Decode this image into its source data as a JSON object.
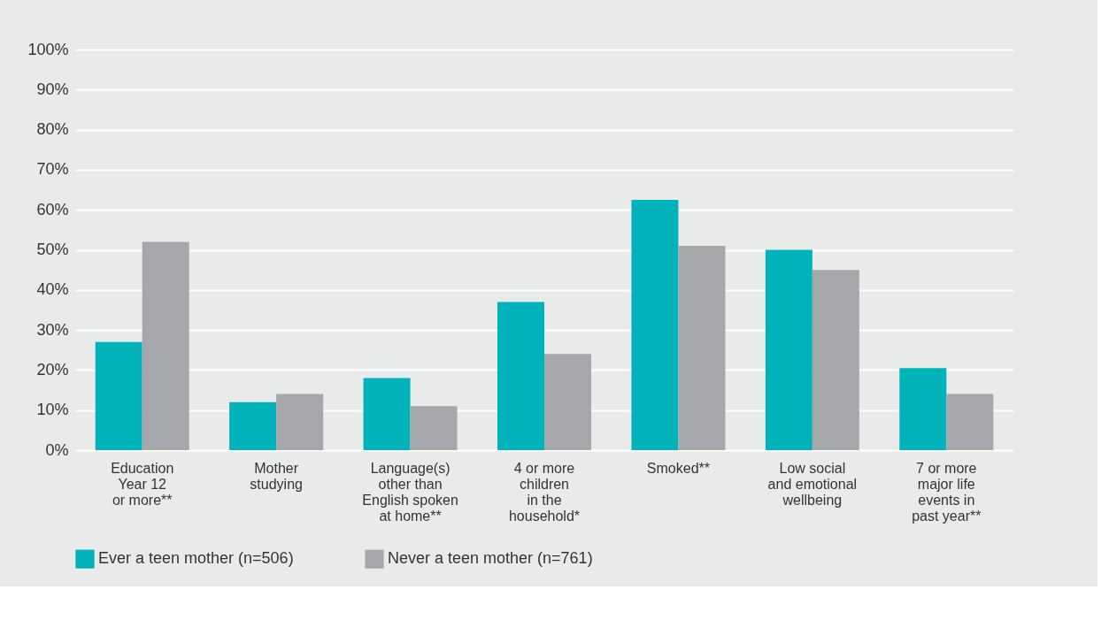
{
  "chart_data": {
    "type": "bar",
    "categories": [
      "Education\nYear 12\nor more**",
      "Mother\nstudying",
      "Language(s)\nother than\nEnglish spoken\nat home**",
      "4 or more\nchildren\nin the\nhousehold*",
      "Smoked**",
      "Low social\nand emotional\nwellbeing",
      "7 or more\nmajor life\nevents in\npast year**"
    ],
    "series": [
      {
        "name": "Ever a teen mother (n=506)",
        "color": "#00b2b9",
        "values": [
          27,
          12,
          18,
          37,
          62.5,
          50,
          20.5
        ]
      },
      {
        "name": "Never a teen mother (n=761)",
        "color": "#a6a7ab",
        "values": [
          52,
          14,
          11,
          24,
          51,
          45,
          14
        ]
      }
    ],
    "ylim": [
      0,
      100
    ],
    "yticks": [
      {
        "value": 0,
        "label": "0%"
      },
      {
        "value": 10,
        "label": "10%"
      },
      {
        "value": 20,
        "label": "20%"
      },
      {
        "value": 30,
        "label": "30%"
      },
      {
        "value": 40,
        "label": "40%"
      },
      {
        "value": 50,
        "label": "50%"
      },
      {
        "value": 60,
        "label": "60%"
      },
      {
        "value": 70,
        "label": "70%"
      },
      {
        "value": 80,
        "label": "80%"
      },
      {
        "value": 90,
        "label": "90%"
      },
      {
        "value": 100,
        "label": "100%"
      }
    ],
    "grid": "y",
    "legend": "bottom"
  }
}
